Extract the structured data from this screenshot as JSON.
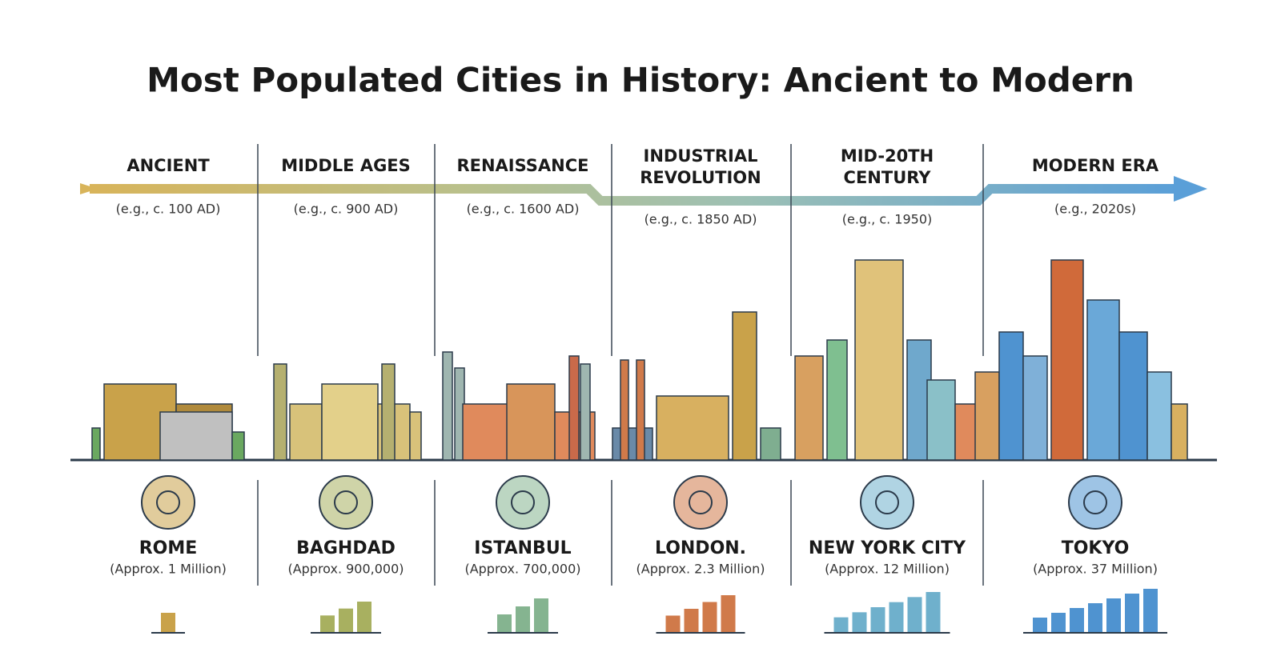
{
  "title": "Most Populated Cities in History: Ancient to Modern",
  "eras": [
    {
      "name_lines": [
        "ANCIENT"
      ],
      "date": "(e.g., c. 100 AD)"
    },
    {
      "name_lines": [
        "MIDDLE AGES"
      ],
      "date": "(e.g., c. 900 AD)"
    },
    {
      "name_lines": [
        "RENAISSANCE"
      ],
      "date": "(e.g., c. 1600 AD)"
    },
    {
      "name_lines": [
        "INDUSTRIAL",
        "REVOLUTION"
      ],
      "date": "(e.g., c. 1850 AD)"
    },
    {
      "name_lines": [
        "MID-20TH",
        "CENTURY"
      ],
      "date": "(e.g., c. 1950)"
    },
    {
      "name_lines": [
        "MODERN ERA"
      ],
      "date": "(e.g., 2020s)"
    }
  ],
  "cities": [
    {
      "name": "ROME",
      "population": "(Approx. 1 Million)"
    },
    {
      "name": "BAGHDAD",
      "population": "(Approx. 900,000)"
    },
    {
      "name": "ISTANBUL",
      "population": "(Approx. 700,000)"
    },
    {
      "name": "LONDON.",
      "population": "(Approx. 2.3 Million)"
    },
    {
      "name": "NEW YORK CITY",
      "population": "(Approx. 12 Million)"
    },
    {
      "name": "TOKYO",
      "population": "(Approx. 37 Million)"
    }
  ]
}
